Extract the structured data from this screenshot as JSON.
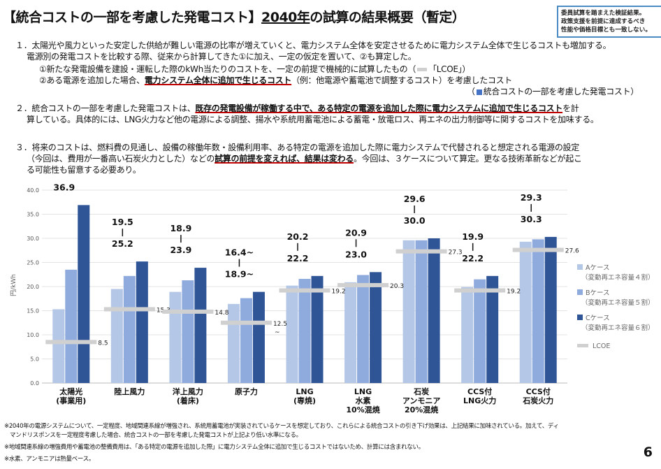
{
  "title": {
    "part1": "【統合コストの一部を考慮した発電コスト】",
    "part2": "2040年",
    "part3": "の試算の結果概要（暫定）"
  },
  "note_box": [
    "委員試算を踏まえた検証結果。",
    "政策支援を前提に達成するべき",
    "性能や価格目標とも一致しない。"
  ],
  "para1": {
    "line1": "１．太陽光や風力といった安定した供給が難しい電源の比率が増えていくと、電力システム全体を安定させるために電力システム全体で生じるコストも増加する。",
    "line2": "電源別の発電コストを比較する際、従来から計算してきた①に加え、一定の仮定を置いて、②も算定した。",
    "line3a": "①新たな発電設備を建設・運転した際のkWh当たりのコストを、一定の前提で機械的に試算したもの（",
    "line3b": "「LCOE」）",
    "line4a": "②ある電源を追加した場合、",
    "line4b": "電力システム全体に追加で生じるコスト",
    "line4c": "（例：他電源や蓄電池で調整するコスト）を考慮したコスト",
    "line5a": "（",
    "line5b": "統合コストの一部を考慮した発電コスト）"
  },
  "para2": {
    "line1a": "２．統合コストの一部を考慮した発電コストは、",
    "line1b": "既存の発電設備が稼働する中で、ある特定の電源を追加した際に電力システムに追加で生じるコスト",
    "line1c": "を計",
    "line2": "算している。具体的には、LNG火力など他の電源による調整、揚水や系統用蓄電池による蓄電・放電ロス、再エネの出力制御等に関するコストを加味する。"
  },
  "para3": {
    "line1": "３．将来のコストは、燃料費の見通し、設備の稼働年数・設備利用率、ある特定の電源を追加した際に電力システムで代替されると想定される電源の設定",
    "line2a": "（今回は、費用が一番高い石炭火力とした）などの",
    "line2b": "試算の前提を変えれば、結果は変わる",
    "line2c": "。今回は、３ケースについて算定。更なる技術革新などが起こ",
    "line3": "る可能性も留意する必要あり。"
  },
  "chart_data": {
    "type": "bar",
    "ylabel": "円/kWh",
    "ylim": [
      0,
      40
    ],
    "yticks": [
      "0.0",
      "5.0",
      "10.0",
      "15.0",
      "20.0",
      "25.0",
      "30.0",
      "35.0",
      "40.0"
    ],
    "grid": true,
    "legend_position": "right",
    "categories": [
      [
        "太陽光",
        "(事業用)"
      ],
      [
        "陸上風力"
      ],
      [
        "洋上風力",
        "(着床)"
      ],
      [
        "原子力"
      ],
      [
        "LNG",
        "(専焼)"
      ],
      [
        "LNG",
        "水素",
        "10%混焼"
      ],
      [
        "石炭",
        "アンモニア",
        "20%混焼"
      ],
      [
        "CCS付",
        "LNG火力"
      ],
      [
        "CCS付",
        "石炭火力"
      ]
    ],
    "series": [
      {
        "name": "Aケース",
        "name_sub": "（変動再エネ容量４割）",
        "color": "#b4c7e7",
        "values": [
          15.3,
          19.5,
          18.9,
          16.4,
          20.2,
          20.9,
          29.6,
          19.9,
          29.3
        ]
      },
      {
        "name": "Bケース",
        "name_sub": "（変動再エネ容量５割）",
        "color": "#8faadc",
        "values": [
          23.5,
          22.2,
          21.3,
          17.6,
          21.6,
          22.4,
          29.6,
          21.5,
          29.8
        ]
      },
      {
        "name": "Cケース",
        "name_sub": "（変動再エネ容量６割）",
        "color": "#2f5597",
        "values": [
          36.9,
          25.2,
          23.9,
          18.9,
          22.2,
          23.0,
          30.0,
          22.2,
          30.3
        ]
      }
    ],
    "lcoe": {
      "name": "LCOE",
      "color": "#d0d0d0",
      "values": [
        8.5,
        15.3,
        14.8,
        12.5,
        19.2,
        20.3,
        27.3,
        19.2,
        27.6
      ],
      "labels": [
        "8.5",
        "15.3",
        "14.8",
        "12.5",
        "19.2",
        "20.3",
        "27.3",
        "19.2",
        "27.6"
      ]
    },
    "range_labels": [
      {
        "low": "15.3",
        "high": "36.9"
      },
      {
        "low": "19.5",
        "high": "25.2"
      },
      {
        "low": "18.9",
        "high": "23.9"
      },
      {
        "low": "16.4~",
        "high": "18.9~"
      },
      {
        "low": "20.2",
        "high": "22.2"
      },
      {
        "low": "20.9",
        "high": "23.0"
      },
      {
        "low": "29.6",
        "high": "30.0"
      },
      {
        "low": "19.9",
        "high": "22.2"
      },
      {
        "low": "29.3",
        "high": "30.3"
      }
    ],
    "nuclear_tilde": "~"
  },
  "footnotes": [
    "※2040年の電源システムについて、一定程度、地域間連系線が増強され、系統用蓄電池が実装されているケースを想定しており、これらによる統合コストの引き下げ効果は、上記結果に加味されている。加えて、ディ",
    "マンドリスポンスを一定程度考慮した場合、統合コストの一部を考慮した発電コストが上記より低い水準になる。",
    "※地域間連系線の増強費用や蓄電池の整備費用は、「ある特定の電源を追加した際」に電力システム全体に追加で生じるコストではないため、計算には含まれない。",
    "※水素、アンモニアは熱量ベース。"
  ],
  "page_number": "6"
}
